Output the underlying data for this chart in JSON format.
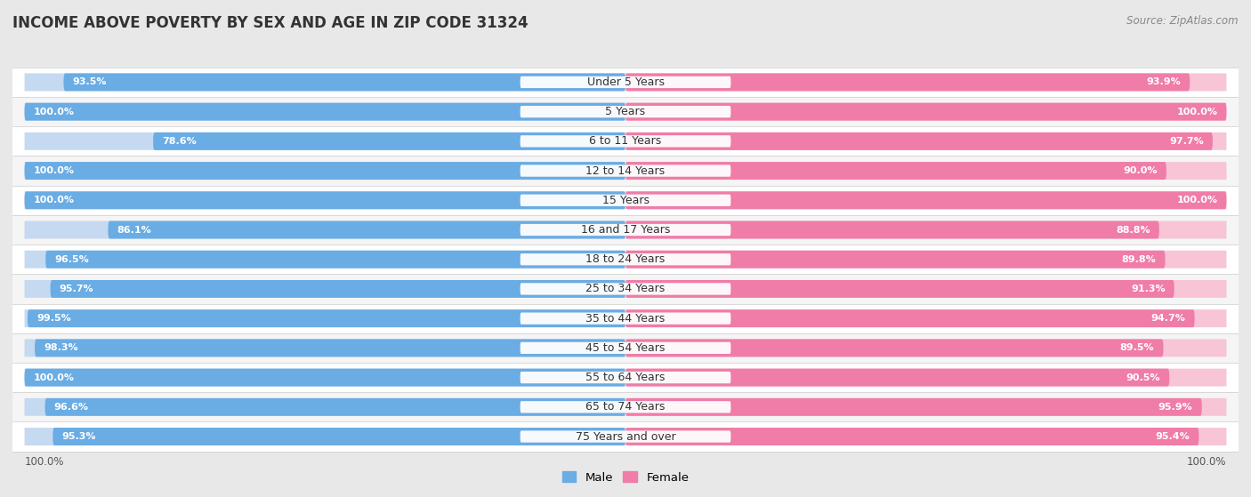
{
  "title": "INCOME ABOVE POVERTY BY SEX AND AGE IN ZIP CODE 31324",
  "source": "Source: ZipAtlas.com",
  "categories": [
    "Under 5 Years",
    "5 Years",
    "6 to 11 Years",
    "12 to 14 Years",
    "15 Years",
    "16 and 17 Years",
    "18 to 24 Years",
    "25 to 34 Years",
    "35 to 44 Years",
    "45 to 54 Years",
    "55 to 64 Years",
    "65 to 74 Years",
    "75 Years and over"
  ],
  "male_values": [
    93.5,
    100.0,
    78.6,
    100.0,
    100.0,
    86.1,
    96.5,
    95.7,
    99.5,
    98.3,
    100.0,
    96.6,
    95.3
  ],
  "female_values": [
    93.9,
    100.0,
    97.7,
    90.0,
    100.0,
    88.8,
    89.8,
    91.3,
    94.7,
    89.5,
    90.5,
    95.9,
    95.4
  ],
  "male_color": "#6aace4",
  "female_color": "#f07ca8",
  "male_color_light": "#c5d9f0",
  "female_color_light": "#f7c5d5",
  "background_color": "#f0f0f0",
  "row_bg_color": "#e8e8e8",
  "xlabel_bottom_left": "100.0%",
  "xlabel_bottom_right": "100.0%",
  "legend_male": "Male",
  "legend_female": "Female",
  "title_fontsize": 12,
  "label_fontsize": 9,
  "value_fontsize": 8,
  "source_fontsize": 8.5
}
